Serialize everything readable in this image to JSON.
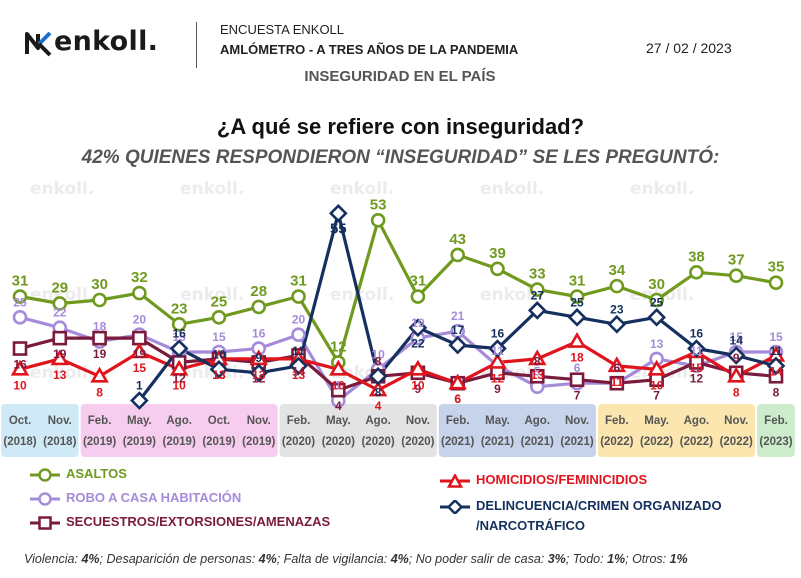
{
  "header": {
    "brand": "enkoll.",
    "survey": "ENCUESTA ENKOLL",
    "subtitle": "AMLÓMETRO - A TRES AÑOS DE LA PANDEMIA",
    "date": "27 / 02 / 2023",
    "topic": "INSEGURIDAD EN EL PAÍS"
  },
  "question": "¿A qué se refiere con inseguridad?",
  "subquestion": "42% QUIENES RESPONDIERON “INSEGURIDAD” SE LES PREGUNTÓ:",
  "watermark": "enkoll.",
  "footer": {
    "items": [
      {
        "label": "Violencia: ",
        "value": "4%"
      },
      {
        "label": "; Desaparición de personas: ",
        "value": "4%"
      },
      {
        "label": "; Falta de vigilancia: ",
        "value": "4%"
      },
      {
        "label": "; No poder salir de casa: ",
        "value": "3%"
      },
      {
        "label": "; Todo: ",
        "value": "1%"
      },
      {
        "label": "; Otros: ",
        "value": "1%"
      }
    ]
  },
  "chart_data": {
    "type": "line",
    "categories": [
      {
        "month": "Oct.",
        "year": "(2018)"
      },
      {
        "month": "Nov.",
        "year": "(2018)"
      },
      {
        "month": "Feb.",
        "year": "(2019)"
      },
      {
        "month": "May.",
        "year": "(2019)"
      },
      {
        "month": "Ago.",
        "year": "(2019)"
      },
      {
        "month": "Oct.",
        "year": "(2019)"
      },
      {
        "month": "Nov.",
        "year": "(2019)"
      },
      {
        "month": "Feb.",
        "year": "(2020)"
      },
      {
        "month": "May.",
        "year": "(2020)"
      },
      {
        "month": "Ago.",
        "year": "(2020)"
      },
      {
        "month": "Nov.",
        "year": "(2020)"
      },
      {
        "month": "Feb.",
        "year": "(2021)"
      },
      {
        "month": "May.",
        "year": "(2021)"
      },
      {
        "month": "Ago.",
        "year": "(2021)"
      },
      {
        "month": "Nov.",
        "year": "(2021)"
      },
      {
        "month": "Feb.",
        "year": "(2022)"
      },
      {
        "month": "May.",
        "year": "(2022)"
      },
      {
        "month": "Ago.",
        "year": "(2022)"
      },
      {
        "month": "Nov.",
        "year": "(2022)"
      },
      {
        "month": "Feb.",
        "year": "(2023)"
      }
    ],
    "year_bands": [
      {
        "start": 0,
        "end": 1,
        "color": "#cfe9f7"
      },
      {
        "start": 2,
        "end": 6,
        "color": "#f6cdee"
      },
      {
        "start": 7,
        "end": 10,
        "color": "#e3e3e3"
      },
      {
        "start": 11,
        "end": 14,
        "color": "#c7d3ea"
      },
      {
        "start": 15,
        "end": 18,
        "color": "#fbe6b0"
      },
      {
        "start": 19,
        "end": 19,
        "color": "#cdeccb"
      }
    ],
    "ylim": [
      0,
      60
    ],
    "series": [
      {
        "name": "ASALTOS",
        "color": "#6f9a1f",
        "marker": "circle",
        "values": [
          31,
          29,
          30,
          32,
          23,
          25,
          28,
          31,
          12,
          53,
          31,
          43,
          39,
          33,
          31,
          34,
          30,
          38,
          37,
          35
        ]
      },
      {
        "name": "ROBO A CASA HABITACIÓN",
        "color": "#a58bd9",
        "marker": "circle",
        "values": [
          25,
          22,
          18,
          20,
          15,
          15,
          16,
          20,
          1,
          10,
          19,
          21,
          11,
          5,
          6,
          6,
          13,
          11,
          15,
          15
        ]
      },
      {
        "name": "SECUESTROS/EXTORSIONES/AMENAZAS",
        "color": "#7a1b3d",
        "marker": "square",
        "values": [
          16,
          19,
          19,
          19,
          12,
          13,
          12,
          14,
          4,
          8,
          9,
          6,
          9,
          8,
          7,
          6,
          7,
          12,
          9,
          8
        ]
      },
      {
        "name": "HOMICIDIOS/FEMINICIDIOS",
        "color": "#e0141c",
        "marker": "triangle",
        "values": [
          10,
          13,
          8,
          15,
          10,
          13,
          13,
          13,
          10,
          4,
          10,
          6,
          12,
          13,
          18,
          11,
          10,
          15,
          8,
          14
        ]
      },
      {
        "name": "DELINCUENCIA/CRIMEN ORGANIZADO /NARCOTRÁFICO",
        "color": "#15305e",
        "marker": "diamond",
        "values": [
          null,
          null,
          null,
          1,
          16,
          10,
          9,
          11,
          55,
          8,
          22,
          17,
          16,
          27,
          25,
          23,
          25,
          16,
          14,
          11
        ]
      }
    ],
    "legend": [
      {
        "label": "ASALTOS",
        "color": "#6f9a1f",
        "marker": "circle"
      },
      {
        "label": "ROBO A CASA HABITACIÓN",
        "color": "#a58bd9",
        "marker": "circle"
      },
      {
        "label": "SECUESTROS/EXTORSIONES/AMENAZAS",
        "color": "#7a1b3d",
        "marker": "square"
      },
      {
        "label": "HOMICIDIOS/FEMINICIDIOS",
        "color": "#e0141c",
        "marker": "triangle"
      },
      {
        "label": "DELINCUENCIA/CRIMEN ORGANIZADO",
        "label2": "/NARCOTRÁFICO",
        "color": "#15305e",
        "marker": "diamond"
      }
    ]
  }
}
